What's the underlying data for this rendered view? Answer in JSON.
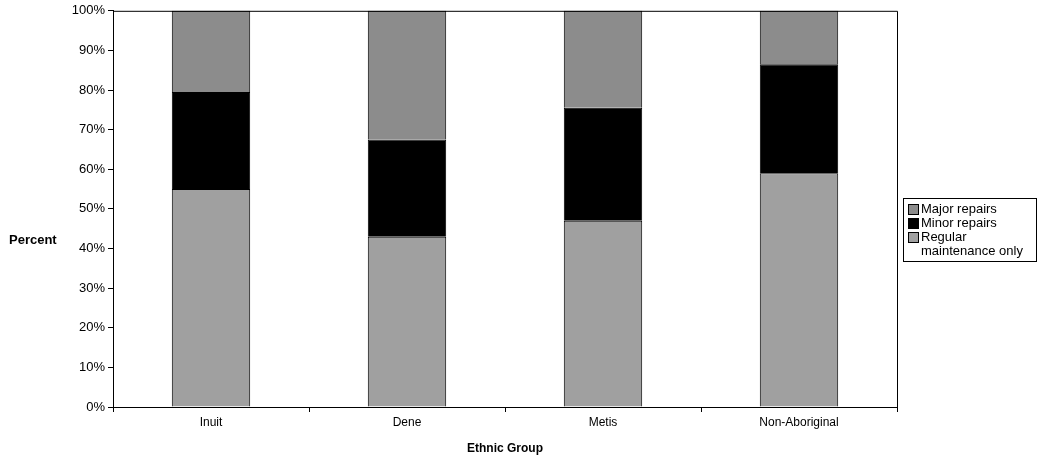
{
  "chart_data": {
    "type": "bar",
    "stacked": true,
    "xlabel": "Ethnic Group",
    "ylabel": "Percent",
    "categories": [
      "Inuit",
      "Dene",
      "Metis",
      "Non-Aboriginal"
    ],
    "series": [
      {
        "name": "Regular maintenance only",
        "color": "#a0a0a0",
        "values": [
          55,
          43,
          47,
          59
        ]
      },
      {
        "name": "Minor repairs",
        "color": "#000000",
        "values": [
          24.5,
          24.5,
          28.5,
          27.5
        ]
      },
      {
        "name": "Major repairs",
        "color": "#8c8c8c",
        "values": [
          20.5,
          32.5,
          24.5,
          13.5
        ]
      }
    ],
    "ylim": [
      0,
      100
    ],
    "yticks": [
      {
        "value": 0,
        "label": "0%"
      },
      {
        "value": 10,
        "label": "10%"
      },
      {
        "value": 20,
        "label": "20%"
      },
      {
        "value": 30,
        "label": "30%"
      },
      {
        "value": 40,
        "label": "40%"
      },
      {
        "value": 50,
        "label": "50%"
      },
      {
        "value": 60,
        "label": "60%"
      },
      {
        "value": 70,
        "label": "70%"
      },
      {
        "value": 80,
        "label": "80%"
      },
      {
        "value": 90,
        "label": "90%"
      },
      {
        "value": 100,
        "label": "100%"
      }
    ],
    "grid": false,
    "legend": "right"
  }
}
